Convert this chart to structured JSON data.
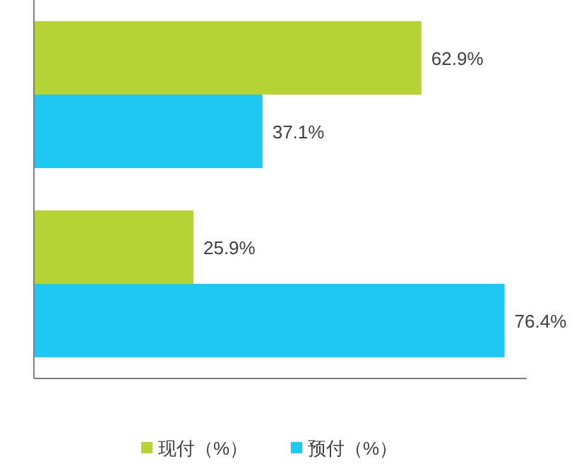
{
  "chart_data": {
    "type": "bar",
    "orientation": "horizontal",
    "categories": [
      null,
      null
    ],
    "series": [
      {
        "name": "现付（%）",
        "color": "#b5d334",
        "values": [
          62.9,
          25.9
        ],
        "value_labels": [
          "62.9%",
          "25.9%"
        ]
      },
      {
        "name": "预付（%）",
        "color": "#1fc8f0",
        "values": [
          37.1,
          76.4
        ],
        "value_labels": [
          "37.1%",
          "76.4%"
        ]
      }
    ],
    "xlim": [
      0,
      80
    ],
    "legend": "bottom"
  }
}
